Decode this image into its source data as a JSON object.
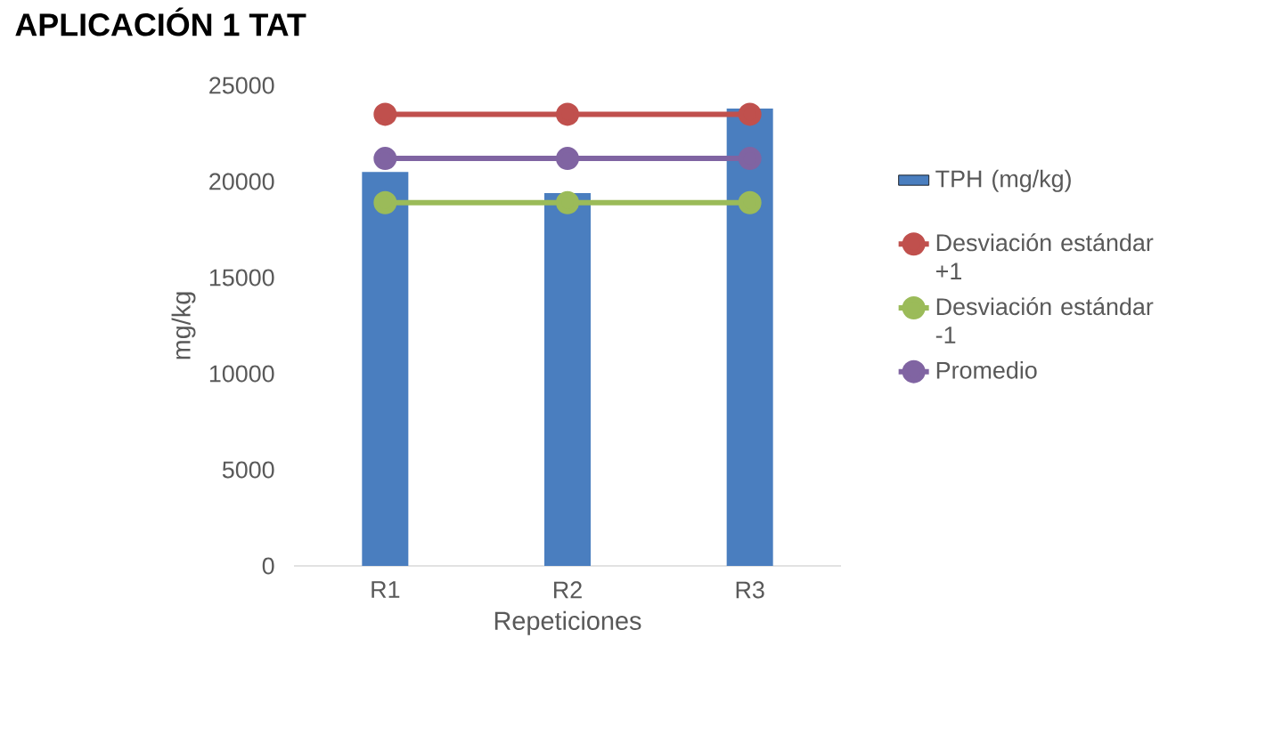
{
  "chart_data": {
    "type": "bar",
    "title": "APLICACIÓN 1 TAT",
    "xlabel": "Repeticiones",
    "ylabel": "mg/kg",
    "categories": [
      "R1",
      "R2",
      "R3"
    ],
    "series": [
      {
        "name": "TPH (mg/kg)",
        "color": "#4a7ebf",
        "values": [
          20500,
          19400,
          23800
        ]
      },
      {
        "name": "Desviación estándar +1",
        "type": "line",
        "color": "#c0504d",
        "values": [
          23500,
          23500,
          23500
        ]
      },
      {
        "name": "Desviación estándar -1",
        "type": "line",
        "color": "#9bbb59",
        "values": [
          18900,
          18900,
          18900
        ]
      },
      {
        "name": "Promedio",
        "type": "line",
        "color": "#8064a2",
        "values": [
          21200,
          21200,
          21200
        ]
      }
    ],
    "ylim": [
      0,
      25000
    ],
    "yticks": [
      0,
      5000,
      10000,
      15000,
      20000,
      25000
    ],
    "legend": "right",
    "marker": "circle"
  }
}
